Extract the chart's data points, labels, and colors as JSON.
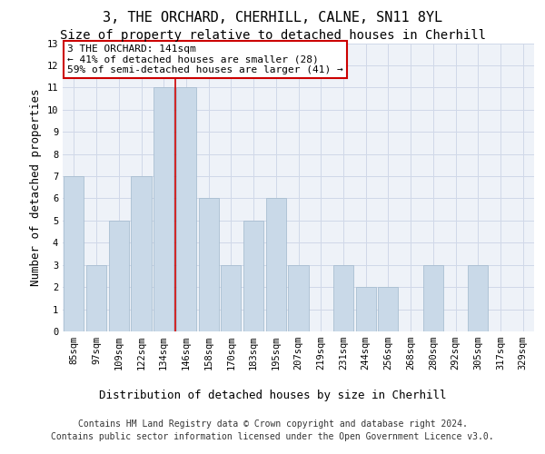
{
  "title1": "3, THE ORCHARD, CHERHILL, CALNE, SN11 8YL",
  "title2": "Size of property relative to detached houses in Cherhill",
  "xlabel": "Distribution of detached houses by size in Cherhill",
  "ylabel": "Number of detached properties",
  "categories": [
    "85sqm",
    "97sqm",
    "109sqm",
    "122sqm",
    "134sqm",
    "146sqm",
    "158sqm",
    "170sqm",
    "183sqm",
    "195sqm",
    "207sqm",
    "219sqm",
    "231sqm",
    "244sqm",
    "256sqm",
    "268sqm",
    "280sqm",
    "292sqm",
    "305sqm",
    "317sqm",
    "329sqm"
  ],
  "values": [
    7,
    3,
    5,
    7,
    11,
    11,
    6,
    3,
    5,
    6,
    3,
    0,
    3,
    2,
    2,
    0,
    3,
    0,
    3,
    0,
    0
  ],
  "bar_color": "#c9d9e8",
  "bar_edge_color": "#a0b8cc",
  "highlight_index": 4,
  "highlight_line_color": "#cc0000",
  "annotation_text": "3 THE ORCHARD: 141sqm\n← 41% of detached houses are smaller (28)\n59% of semi-detached houses are larger (41) →",
  "annotation_box_color": "#ffffff",
  "annotation_box_edge_color": "#cc0000",
  "ylim": [
    0,
    13
  ],
  "yticks": [
    0,
    1,
    2,
    3,
    4,
    5,
    6,
    7,
    8,
    9,
    10,
    11,
    12,
    13
  ],
  "grid_color": "#d0d8e8",
  "background_color": "#eef2f8",
  "footer_line1": "Contains HM Land Registry data © Crown copyright and database right 2024.",
  "footer_line2": "Contains public sector information licensed under the Open Government Licence v3.0.",
  "title1_fontsize": 11,
  "title2_fontsize": 10,
  "xlabel_fontsize": 9,
  "ylabel_fontsize": 9,
  "tick_fontsize": 7.5,
  "annotation_fontsize": 8,
  "footer_fontsize": 7
}
